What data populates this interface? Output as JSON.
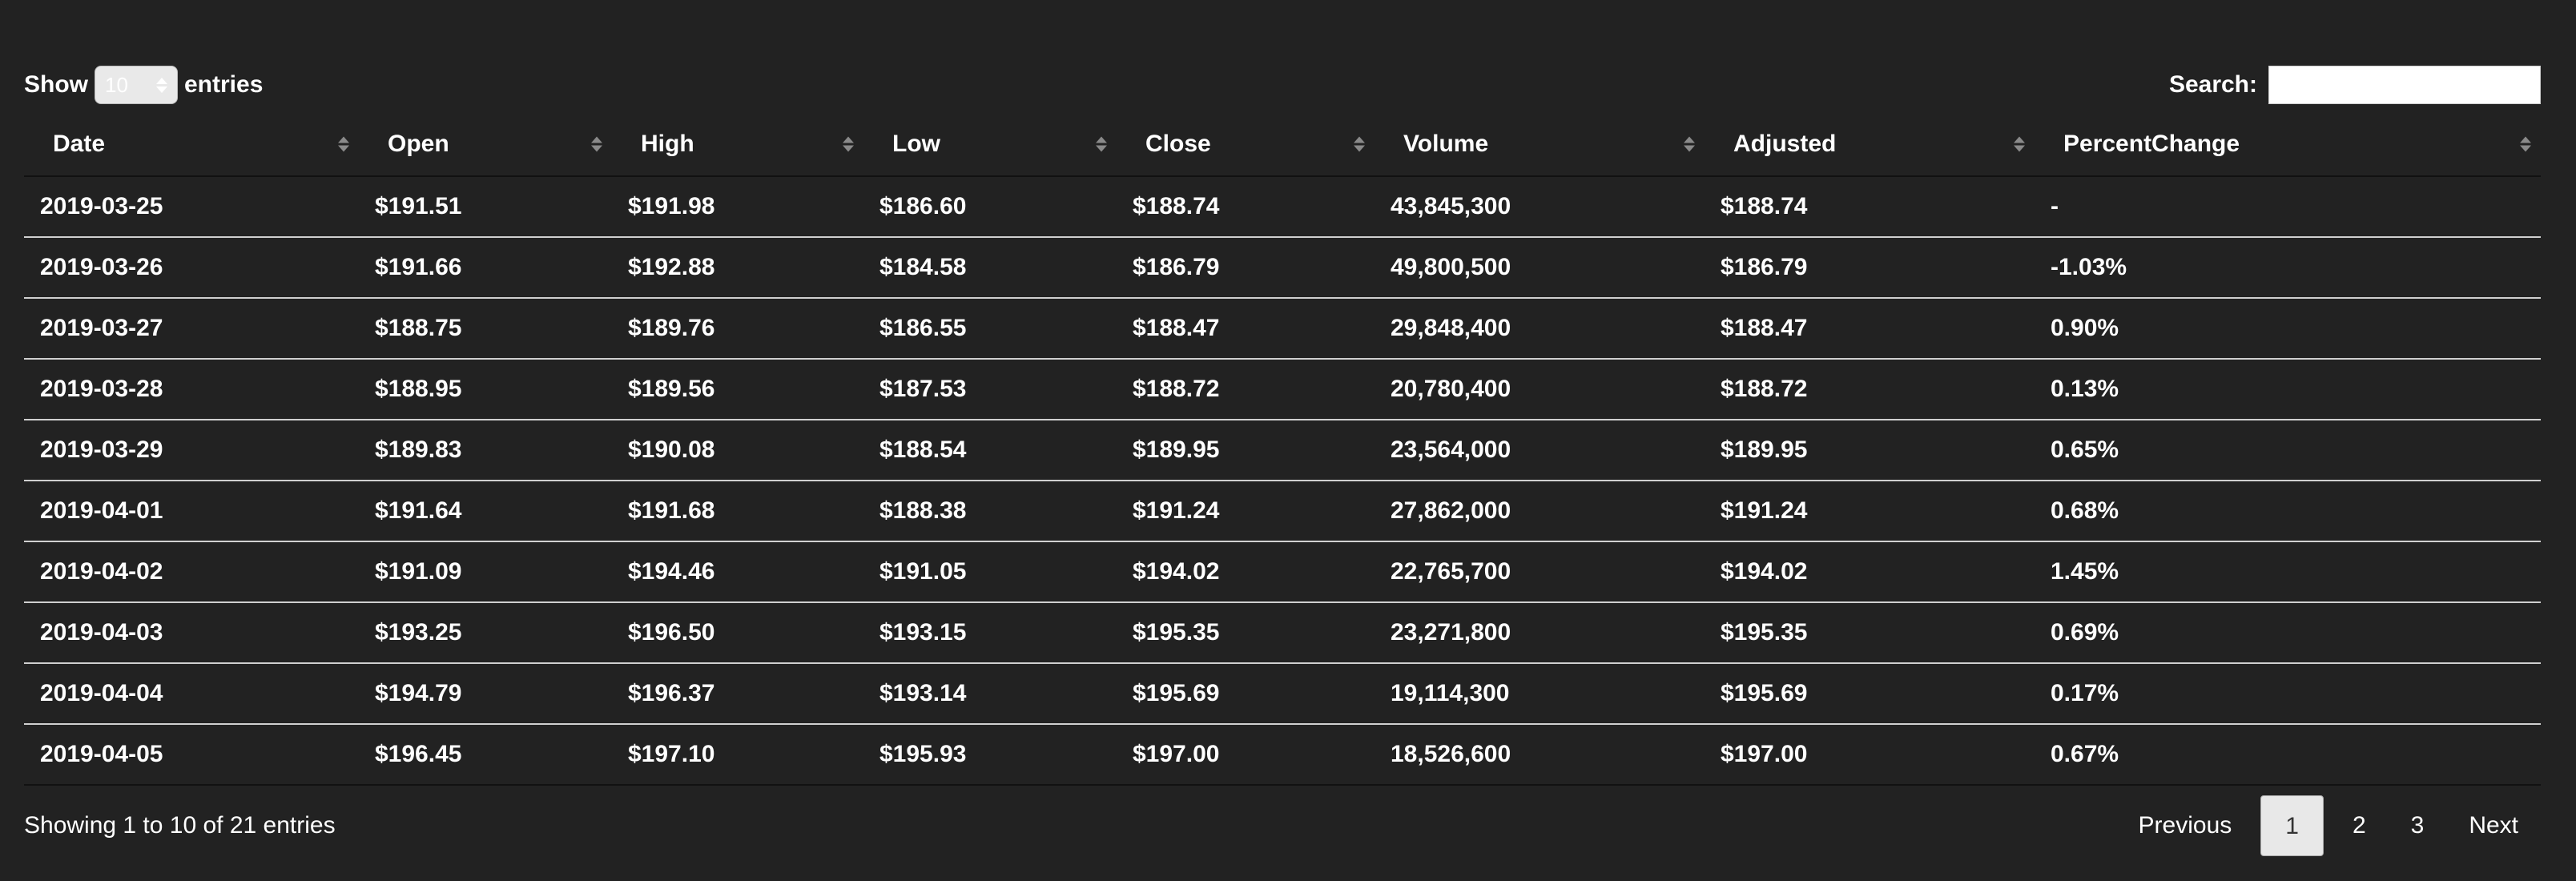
{
  "controls": {
    "show_label": "Show",
    "entries_label": "entries",
    "page_length_value": "10",
    "search_label": "Search:",
    "search_value": "",
    "search_placeholder": ""
  },
  "table": {
    "columns": [
      "Date",
      "Open",
      "High",
      "Low",
      "Close",
      "Volume",
      "Adjusted",
      "PercentChange"
    ],
    "rows": [
      [
        "2019-03-25",
        "$191.51",
        "$191.98",
        "$186.60",
        "$188.74",
        "43,845,300",
        "$188.74",
        "-"
      ],
      [
        "2019-03-26",
        "$191.66",
        "$192.88",
        "$184.58",
        "$186.79",
        "49,800,500",
        "$186.79",
        "-1.03%"
      ],
      [
        "2019-03-27",
        "$188.75",
        "$189.76",
        "$186.55",
        "$188.47",
        "29,848,400",
        "$188.47",
        "0.90%"
      ],
      [
        "2019-03-28",
        "$188.95",
        "$189.56",
        "$187.53",
        "$188.72",
        "20,780,400",
        "$188.72",
        "0.13%"
      ],
      [
        "2019-03-29",
        "$189.83",
        "$190.08",
        "$188.54",
        "$189.95",
        "23,564,000",
        "$189.95",
        "0.65%"
      ],
      [
        "2019-04-01",
        "$191.64",
        "$191.68",
        "$188.38",
        "$191.24",
        "27,862,000",
        "$191.24",
        "0.68%"
      ],
      [
        "2019-04-02",
        "$191.09",
        "$194.46",
        "$191.05",
        "$194.02",
        "22,765,700",
        "$194.02",
        "1.45%"
      ],
      [
        "2019-04-03",
        "$193.25",
        "$196.50",
        "$193.15",
        "$195.35",
        "23,271,800",
        "$195.35",
        "0.69%"
      ],
      [
        "2019-04-04",
        "$194.79",
        "$196.37",
        "$193.14",
        "$195.69",
        "19,114,300",
        "$195.69",
        "0.17%"
      ],
      [
        "2019-04-05",
        "$196.45",
        "$197.10",
        "$195.93",
        "$197.00",
        "18,526,600",
        "$197.00",
        "0.67%"
      ]
    ]
  },
  "footer": {
    "info": "Showing 1 to 10 of 21 entries",
    "previous_label": "Previous",
    "pages": [
      "1",
      "2",
      "3"
    ],
    "current_page": "1",
    "next_label": "Next"
  },
  "colors": {
    "background": "#222222",
    "text": "#ffffff",
    "row_divider": "#d0d0d0",
    "current_page_bg": "#e8e8e8"
  },
  "icons": {
    "sort": "sort-both-icon",
    "select": "select-arrows-icon"
  }
}
